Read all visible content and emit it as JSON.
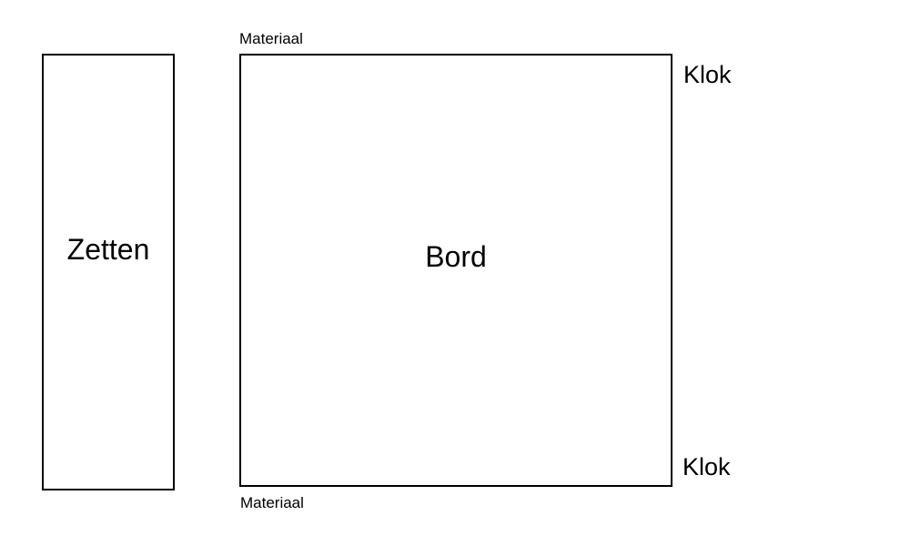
{
  "moves_panel": {
    "label": "Zetten"
  },
  "board": {
    "label": "Bord"
  },
  "material": {
    "top": "Materiaal",
    "bottom": "Materiaal"
  },
  "clock": {
    "top": "Klok",
    "bottom": "Klok"
  }
}
